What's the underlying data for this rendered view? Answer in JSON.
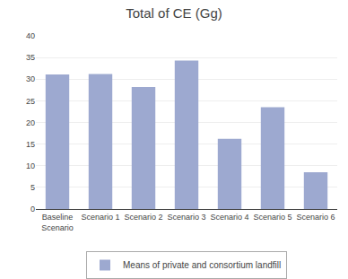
{
  "chart_data": {
    "type": "bar",
    "title": "Total of CE (Gg)",
    "categories": [
      "Baseline\nScenario",
      "Scenario 1",
      "Scenario 2",
      "Scenario 3",
      "Scenario 4",
      "Scenario 5",
      "Scenario 6"
    ],
    "series": [
      {
        "name": "Means of private and consortium landfill",
        "color": "#9DA9D0",
        "values": [
          31.1,
          31.2,
          28.2,
          34.3,
          16.2,
          23.5,
          8.5
        ]
      }
    ],
    "ylim": [
      0,
      40
    ],
    "yticks": [
      0,
      5,
      10,
      15,
      20,
      25,
      30,
      35,
      40
    ],
    "grid": true,
    "legend": "bottom"
  }
}
